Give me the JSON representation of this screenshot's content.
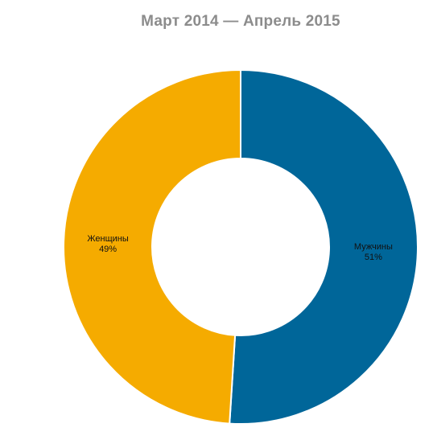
{
  "chart_data": {
    "type": "pie",
    "donut": true,
    "title": "Март 2014 — Апрель 2015",
    "slices": [
      {
        "label": "Мужчины",
        "value": 51,
        "display": "51%",
        "color": "#006699"
      },
      {
        "label": "Женщины",
        "value": 49,
        "display": "49%",
        "color": "#f5ab00"
      }
    ],
    "legend": "none",
    "start_angle": "12 o'clock, clockwise"
  }
}
